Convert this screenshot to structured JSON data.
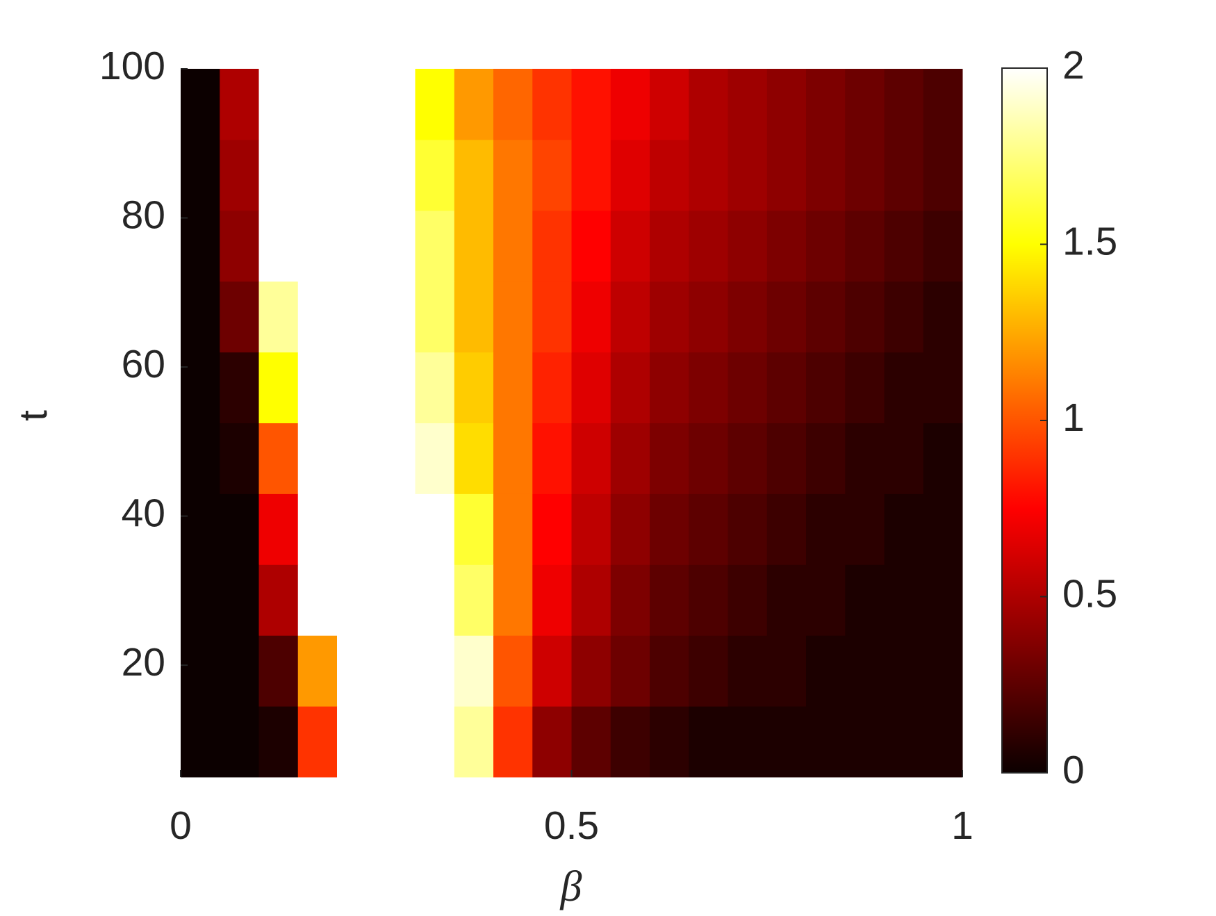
{
  "chart_data": {
    "type": "heatmap",
    "x_label": "β",
    "y_label": "t",
    "x": [
      0.025,
      0.075,
      0.125,
      0.175,
      0.225,
      0.275,
      0.325,
      0.375,
      0.425,
      0.475,
      0.525,
      0.575,
      0.625,
      0.675,
      0.725,
      0.775,
      0.825,
      0.875,
      0.925,
      0.975
    ],
    "y": [
      9.75,
      19.25,
      28.75,
      38.25,
      47.75,
      57.25,
      66.75,
      76.25,
      85.75,
      95.25
    ],
    "values": [
      [
        0,
        0,
        0.05,
        0.9,
        2,
        2,
        2,
        1.8,
        0.9,
        0.4,
        0.25,
        0.15,
        0.1,
        0.05,
        0.05,
        0.05,
        0.05,
        0.05,
        0.05,
        0.05
      ],
      [
        0,
        0,
        0.2,
        1.2,
        2,
        2,
        2,
        1.9,
        1.0,
        0.6,
        0.4,
        0.3,
        0.2,
        0.15,
        0.1,
        0.1,
        0.05,
        0.05,
        0.05,
        0.05
      ],
      [
        0,
        0,
        0.5,
        2,
        2,
        2,
        2,
        1.7,
        1.1,
        0.7,
        0.5,
        0.35,
        0.25,
        0.2,
        0.15,
        0.1,
        0.1,
        0.05,
        0.05,
        0.05
      ],
      [
        0,
        0,
        0.7,
        2,
        2,
        2,
        2,
        1.6,
        1.1,
        0.75,
        0.55,
        0.4,
        0.3,
        0.25,
        0.2,
        0.15,
        0.1,
        0.1,
        0.05,
        0.05
      ],
      [
        0,
        0.05,
        1.0,
        2,
        2,
        2,
        1.9,
        1.4,
        1.1,
        0.8,
        0.6,
        0.45,
        0.35,
        0.3,
        0.25,
        0.2,
        0.15,
        0.1,
        0.1,
        0.05
      ],
      [
        0,
        0.1,
        1.5,
        2,
        2,
        2,
        1.8,
        1.35,
        1.1,
        0.85,
        0.65,
        0.5,
        0.4,
        0.35,
        0.3,
        0.25,
        0.2,
        0.15,
        0.1,
        0.1
      ],
      [
        0,
        0.3,
        1.8,
        2,
        2,
        2,
        1.7,
        1.3,
        1.1,
        0.9,
        0.7,
        0.55,
        0.45,
        0.4,
        0.35,
        0.3,
        0.25,
        0.2,
        0.15,
        0.1
      ],
      [
        0,
        0.4,
        2,
        2,
        2,
        2,
        1.7,
        1.3,
        1.1,
        0.9,
        0.75,
        0.6,
        0.5,
        0.45,
        0.4,
        0.35,
        0.3,
        0.25,
        0.2,
        0.15
      ],
      [
        0,
        0.45,
        2,
        2,
        2,
        2,
        1.6,
        1.3,
        1.1,
        0.95,
        0.8,
        0.65,
        0.55,
        0.5,
        0.45,
        0.4,
        0.35,
        0.3,
        0.25,
        0.2
      ],
      [
        0,
        0.5,
        2,
        2,
        2,
        2,
        1.5,
        1.2,
        1.05,
        0.9,
        0.8,
        0.7,
        0.6,
        0.5,
        0.45,
        0.4,
        0.35,
        0.3,
        0.25,
        0.2
      ]
    ],
    "xlim": [
      0,
      1
    ],
    "xticks": [
      0,
      0.5,
      1
    ],
    "ylim": [
      5,
      100
    ],
    "yticks": [
      20,
      40,
      60,
      80,
      100
    ],
    "colormap": "hot",
    "clim": [
      0,
      2
    ],
    "cticks": [
      0,
      0.5,
      1,
      1.5,
      2
    ]
  }
}
